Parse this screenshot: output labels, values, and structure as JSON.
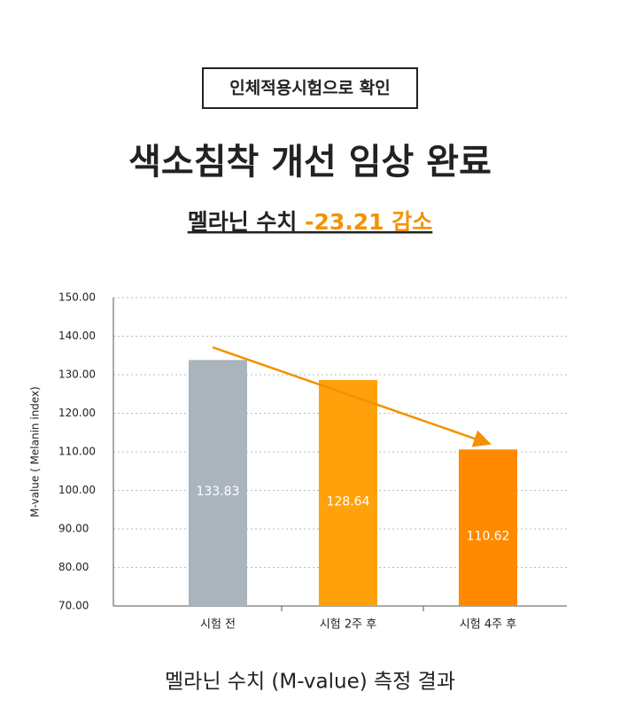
{
  "badge": "인체적용시험으로 확인",
  "headline": "색소침착 개선 임상 완료",
  "subheadline": {
    "metric": "멜라닌 수치",
    "change": "-23.21 감소"
  },
  "chart_data": {
    "type": "bar",
    "categories": [
      "시험 전",
      "시험 2주 후",
      "시험 4주 후"
    ],
    "values": [
      133.83,
      128.64,
      110.62
    ],
    "colors": [
      "#a9b4bd",
      "#ffa10a",
      "#ff8a00"
    ],
    "y_label": "M-value ( Melanin index)",
    "ylim": [
      70,
      150
    ],
    "yticks": [
      {
        "value": 70,
        "label": "70.00"
      },
      {
        "value": 80,
        "label": "80.00"
      },
      {
        "value": 90,
        "label": "90.00"
      },
      {
        "value": 100,
        "label": "100.00"
      },
      {
        "value": 110,
        "label": "110.00"
      },
      {
        "value": 120,
        "label": "120.00"
      },
      {
        "value": 130,
        "label": "130.00"
      },
      {
        "value": 140,
        "label": "140.00"
      },
      {
        "value": 150,
        "label": "150.00"
      }
    ],
    "grid": true,
    "caption": "멜라닌 수치 (M-value) 측정 결과"
  }
}
